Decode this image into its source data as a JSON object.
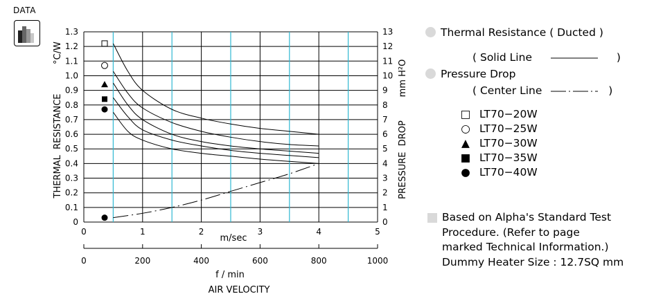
{
  "badge": {
    "label": "DATA",
    "icon": "bar-chart-icon"
  },
  "chart_data": {
    "type": "line",
    "x_primary": {
      "label": "m/sec",
      "range": [
        0,
        5
      ],
      "ticks": [
        0,
        1,
        2,
        3,
        4,
        5
      ]
    },
    "x_secondary": {
      "label": "f / min",
      "range": [
        0,
        1000
      ],
      "ticks": [
        0,
        200,
        400,
        600,
        800,
        1000
      ]
    },
    "x_title": "AIR VELOCITY",
    "y_left": {
      "label": "THERMAL  RESISTANCE",
      "unit": "°C/W",
      "range": [
        0,
        1.3
      ],
      "ticks": [
        "0",
        "0.1",
        "0.2",
        "0.3",
        "0.4",
        "0.5",
        "0.6",
        "0.7",
        "0.8",
        "0.9",
        "1.0",
        "1.1",
        "1.2",
        "1.3"
      ]
    },
    "y_right": {
      "label": "PRESSURE  DROP",
      "unit": "mm H²O",
      "range": [
        0,
        13
      ],
      "ticks": [
        "0",
        "1",
        "2",
        "3",
        "4",
        "5",
        "6",
        "7",
        "8",
        "9",
        "10",
        "11",
        "12",
        "13"
      ]
    },
    "vertical_gridlines": [
      0.5,
      1.5,
      2.5,
      3.5,
      4.5
    ],
    "series": [
      {
        "name": "LT70-20W",
        "marker": "open-square",
        "marker_y": 1.22,
        "x": [
          0.5,
          0.75,
          1.0,
          1.5,
          2.0,
          2.5,
          3.0,
          3.5,
          4.0
        ],
        "y": [
          1.22,
          1.03,
          0.9,
          0.77,
          0.71,
          0.67,
          0.64,
          0.62,
          0.6
        ]
      },
      {
        "name": "LT70-25W",
        "marker": "open-circle",
        "marker_y": 1.07,
        "x": [
          0.5,
          0.75,
          1.0,
          1.5,
          2.0,
          2.5,
          3.0,
          3.5,
          4.0
        ],
        "y": [
          1.03,
          0.88,
          0.78,
          0.68,
          0.62,
          0.58,
          0.55,
          0.53,
          0.52
        ]
      },
      {
        "name": "LT70-30W",
        "marker": "filled-triangle",
        "marker_y": 0.94,
        "x": [
          0.5,
          0.75,
          1.0,
          1.5,
          2.0,
          2.5,
          3.0,
          3.5,
          4.0
        ],
        "y": [
          0.95,
          0.8,
          0.7,
          0.6,
          0.55,
          0.52,
          0.5,
          0.485,
          0.47
        ]
      },
      {
        "name": "LT70-35W",
        "marker": "filled-square",
        "marker_y": 0.84,
        "x": [
          0.5,
          0.75,
          1.0,
          1.5,
          2.0,
          2.5,
          3.0,
          3.5,
          4.0
        ],
        "y": [
          0.85,
          0.72,
          0.63,
          0.56,
          0.52,
          0.49,
          0.47,
          0.455,
          0.44
        ]
      },
      {
        "name": "LT70-40W",
        "marker": "filled-circle",
        "marker_y": 0.77,
        "x": [
          0.5,
          0.75,
          1.0,
          1.5,
          2.0,
          2.5,
          3.0,
          3.5,
          4.0
        ],
        "y": [
          0.75,
          0.62,
          0.56,
          0.5,
          0.47,
          0.45,
          0.43,
          0.415,
          0.4
        ]
      },
      {
        "name": "Pressure Drop",
        "style": "dash-dot",
        "axis": "right",
        "marker": "filled-circle",
        "marker_y": 0.3,
        "x": [
          0.5,
          1.0,
          1.5,
          2.0,
          2.5,
          3.0,
          3.5,
          4.0
        ],
        "y": [
          0.3,
          0.6,
          1.0,
          1.5,
          2.1,
          2.7,
          3.3,
          4.0
        ]
      }
    ]
  },
  "legend": {
    "thermal_title": "Thermal Resistance ( Ducted )",
    "solid_open": "( Solid Line",
    "solid_close": ")",
    "pressure_title": "Pressure Drop",
    "center_open": "( Center Line",
    "center_close": ")",
    "models": [
      {
        "label": "LT70−20W",
        "marker": "□"
      },
      {
        "label": "LT70−25W",
        "marker": "○"
      },
      {
        "label": "LT70−30W",
        "marker": "▲"
      },
      {
        "label": "LT70−35W",
        "marker": "■"
      },
      {
        "label": "LT70−40W",
        "marker": "●"
      }
    ]
  },
  "note": {
    "lines": [
      "Based on Alpha's Standard Test",
      "Procedure.  (Refer to page",
      "marked Technical Information.)",
      "Dummy Heater Size :   12.7SQ mm"
    ]
  },
  "colors": {
    "grid": "#000000",
    "cyan_grid": "#2fb8d2",
    "curve": "#000000",
    "legend_dot": "#d9d9d9"
  }
}
